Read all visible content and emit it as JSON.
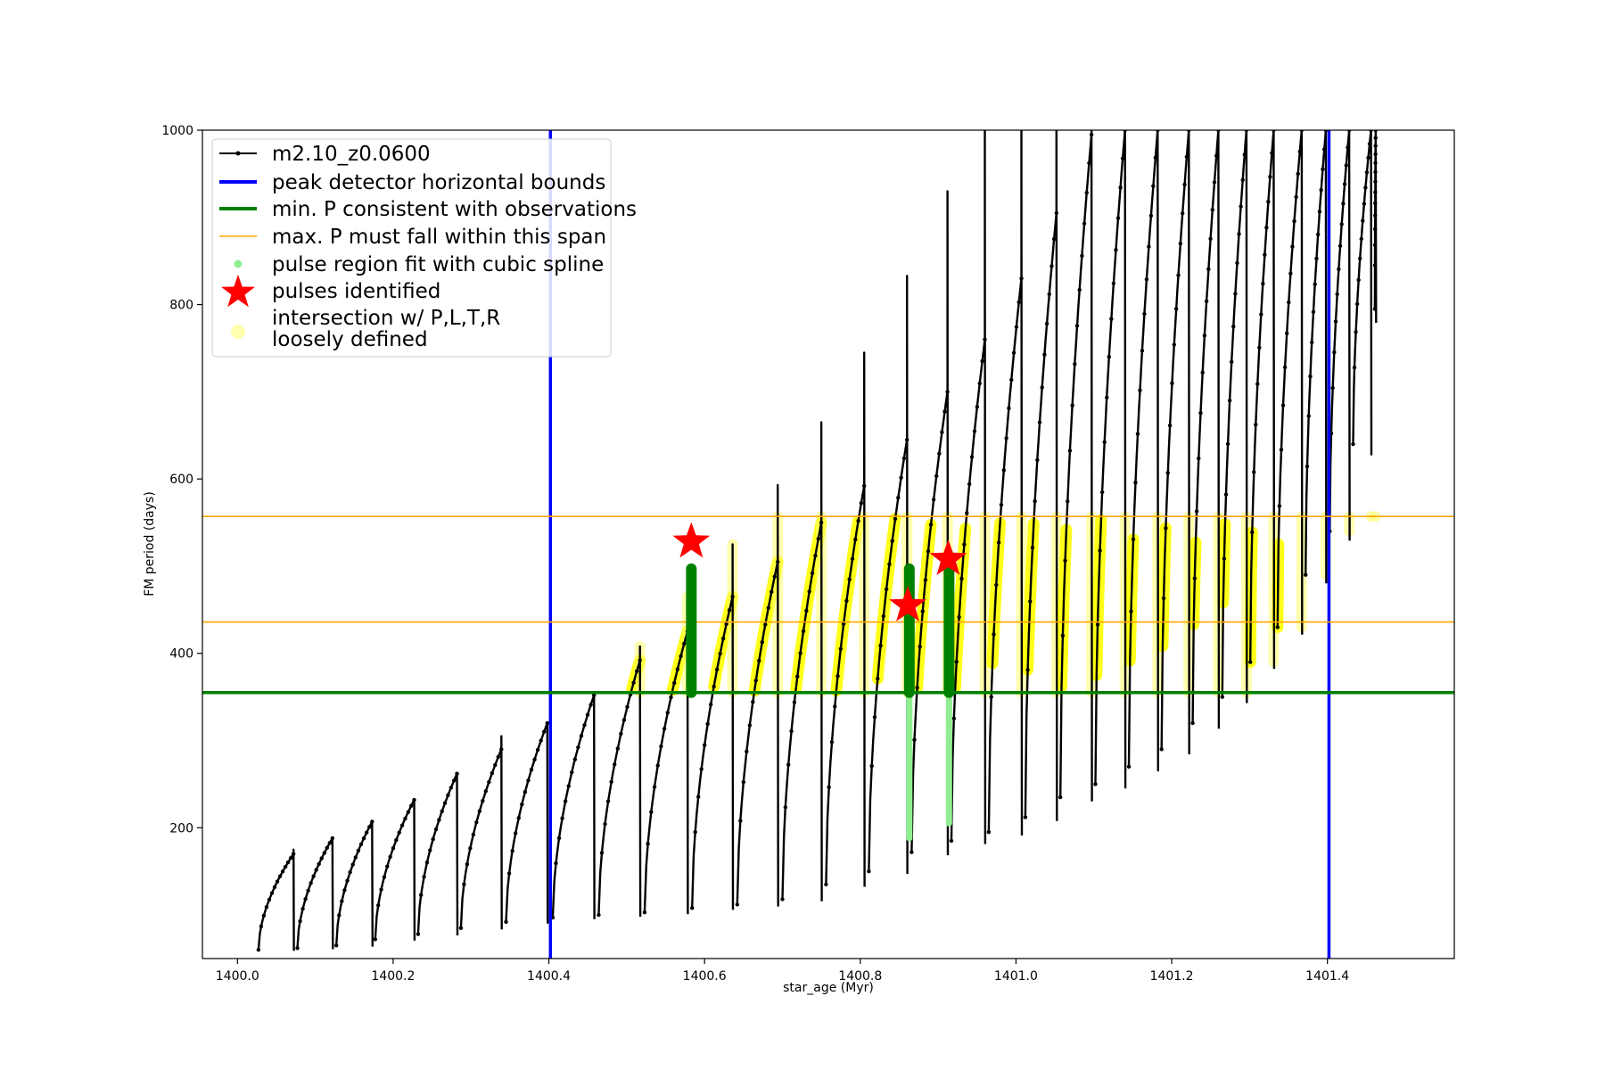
{
  "chart_data": {
    "type": "line",
    "title": "",
    "xlabel": "star_age (Myr)",
    "ylabel": "FM period (days)",
    "xlim": [
      1399.955,
      1401.563
    ],
    "ylim": [
      50,
      1000
    ],
    "xticks": [
      {
        "value": 1400.0,
        "label": "1400.0"
      },
      {
        "value": 1400.2,
        "label": "1400.2"
      },
      {
        "value": 1400.4,
        "label": "1400.4"
      },
      {
        "value": 1400.6,
        "label": "1400.6"
      },
      {
        "value": 1400.8,
        "label": "1400.8"
      },
      {
        "value": 1401.0,
        "label": "1401.0"
      },
      {
        "value": 1401.2,
        "label": "1401.2"
      },
      {
        "value": 1401.4,
        "label": "1401.4"
      }
    ],
    "yticks": [
      {
        "value": 200,
        "label": "200"
      },
      {
        "value": 400,
        "label": "400"
      },
      {
        "value": 600,
        "label": "600"
      },
      {
        "value": 800,
        "label": "800"
      },
      {
        "value": 1000,
        "label": "1000"
      }
    ],
    "grid": false,
    "legend_position": "top-left",
    "legend": [
      {
        "label": "m2.10_z0.0600",
        "marker": "line-dot",
        "color": "#000000"
      },
      {
        "label": "peak detector horizontal bounds",
        "marker": "line",
        "color": "#0000ff"
      },
      {
        "label": "min. P consistent with observations",
        "marker": "line",
        "color": "#008000"
      },
      {
        "label": "max. P must fall within this span",
        "marker": "thin-line",
        "color": "#ffa500"
      },
      {
        "label": "pulse region fit with cubic spline",
        "marker": "dot",
        "color": "#90ee90"
      },
      {
        "label": "pulses identified",
        "marker": "star",
        "color": "#ff0000"
      },
      {
        "label": "intersection w/ P,L,T,R",
        "label2": "loosely defined",
        "marker": "dot",
        "color": "#ffffb0"
      }
    ],
    "vlines": [
      {
        "x": 1400.402,
        "color": "#0000ff"
      },
      {
        "x": 1401.402,
        "color": "#0000ff"
      }
    ],
    "hlines": [
      {
        "y": 355,
        "color": "#008000",
        "role": "min"
      },
      {
        "y": 436,
        "color": "#ffa500",
        "role": "max-low"
      },
      {
        "y": 557,
        "color": "#ffa500",
        "role": "max-high"
      }
    ],
    "pulse_cycles": [
      {
        "start": 1400.027,
        "end": 1400.072,
        "min": 60,
        "max": 170,
        "spike": 175
      },
      {
        "start": 1400.077,
        "end": 1400.122,
        "min": 62,
        "max": 188,
        "spike": 188
      },
      {
        "start": 1400.127,
        "end": 1400.173,
        "min": 65,
        "max": 207,
        "spike": 207
      },
      {
        "start": 1400.177,
        "end": 1400.227,
        "min": 72,
        "max": 232,
        "spike": 232
      },
      {
        "start": 1400.232,
        "end": 1400.282,
        "min": 78,
        "max": 262,
        "spike": 262
      },
      {
        "start": 1400.287,
        "end": 1400.339,
        "min": 85,
        "max": 290,
        "spike": 305
      },
      {
        "start": 1400.345,
        "end": 1400.398,
        "min": 92,
        "max": 320,
        "spike": 320
      },
      {
        "start": 1400.405,
        "end": 1400.458,
        "min": 97,
        "max": 352,
        "spike": 352
      },
      {
        "start": 1400.464,
        "end": 1400.517,
        "min": 100,
        "max": 392,
        "spike": 408
      },
      {
        "start": 1400.523,
        "end": 1400.578,
        "min": 103,
        "max": 425,
        "spike": 465
      },
      {
        "start": 1400.584,
        "end": 1400.636,
        "min": 108,
        "max": 465,
        "spike": 525
      },
      {
        "start": 1400.642,
        "end": 1400.694,
        "min": 112,
        "max": 505,
        "spike": 593
      },
      {
        "start": 1400.7,
        "end": 1400.75,
        "min": 118,
        "max": 550,
        "spike": 665
      },
      {
        "start": 1400.756,
        "end": 1400.805,
        "min": 135,
        "max": 592,
        "spike": 745
      },
      {
        "start": 1400.811,
        "end": 1400.86,
        "min": 150,
        "max": 645,
        "spike": 833
      },
      {
        "start": 1400.866,
        "end": 1400.912,
        "min": 172,
        "max": 700,
        "spike": 930
      },
      {
        "start": 1400.917,
        "end": 1400.96,
        "min": 185,
        "max": 760,
        "spike": 1000
      },
      {
        "start": 1400.965,
        "end": 1401.007,
        "min": 195,
        "max": 830,
        "spike": 1000
      },
      {
        "start": 1401.012,
        "end": 1401.052,
        "min": 212,
        "max": 905,
        "spike": 1000
      },
      {
        "start": 1401.057,
        "end": 1401.097,
        "min": 235,
        "max": 995,
        "spike": 1000
      },
      {
        "start": 1401.102,
        "end": 1401.14,
        "min": 250,
        "max": 1000,
        "spike": 1000
      },
      {
        "start": 1401.145,
        "end": 1401.182,
        "min": 270,
        "max": 1000,
        "spike": 1000
      },
      {
        "start": 1401.187,
        "end": 1401.222,
        "min": 290,
        "max": 1000,
        "spike": 1000
      },
      {
        "start": 1401.227,
        "end": 1401.26,
        "min": 320,
        "max": 1000,
        "spike": 1000
      },
      {
        "start": 1401.265,
        "end": 1401.296,
        "min": 350,
        "max": 1000,
        "spike": 1000
      },
      {
        "start": 1401.301,
        "end": 1401.331,
        "min": 390,
        "max": 1000,
        "spike": 1000
      },
      {
        "start": 1401.336,
        "end": 1401.367,
        "min": 430,
        "max": 1000,
        "spike": 1000
      },
      {
        "start": 1401.372,
        "end": 1401.398,
        "min": 490,
        "max": 1000,
        "spike": 1000
      },
      {
        "start": 1401.403,
        "end": 1401.428,
        "min": 540,
        "max": 1000,
        "spike": 1000
      },
      {
        "start": 1401.433,
        "end": 1401.456,
        "min": 640,
        "max": 1000,
        "spike": 1000
      },
      {
        "start": 1401.461,
        "end": 1401.462,
        "min": 795,
        "max": 1000,
        "spike": 1000
      }
    ],
    "fit_regions": [
      {
        "x": 1400.583,
        "y_low": 355,
        "y_high": 497
      },
      {
        "x": 1400.863,
        "y_low": 188,
        "y_high": 497
      },
      {
        "x": 1400.914,
        "y_low": 205,
        "y_high": 497
      }
    ],
    "pulses_identified": [
      {
        "x": 1400.583,
        "y": 528
      },
      {
        "x": 1400.861,
        "y": 455
      },
      {
        "x": 1400.913,
        "y": 508
      }
    ],
    "intersection_low": 355,
    "intersection_high": 557
  }
}
